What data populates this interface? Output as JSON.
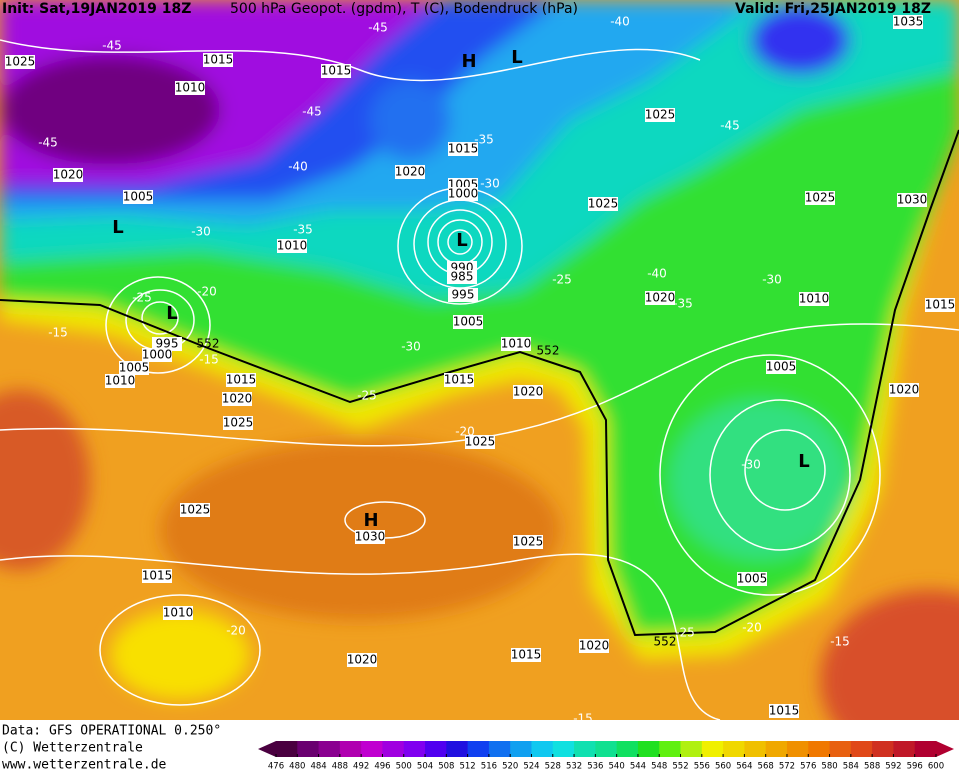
{
  "header": {
    "init": "Init: Sat,19JAN2019 18Z",
    "title": "500 hPa Geopot. (gpdm), T (C), Bodendruck (hPa)",
    "valid": "Valid: Fri,25JAN2019 18Z"
  },
  "footer": {
    "data": "Data: GFS OPERATIONAL 0.250°",
    "copyright": "(C) Wetterzentrale",
    "url": "www.wetterzentrale.de"
  },
  "colorbar": {
    "ticks": [
      476,
      480,
      484,
      488,
      492,
      496,
      500,
      504,
      508,
      512,
      516,
      520,
      524,
      528,
      532,
      536,
      540,
      544,
      548,
      552,
      556,
      560,
      564,
      568,
      572,
      576,
      580,
      584,
      588,
      592,
      596,
      600
    ],
    "colors": [
      "#4a0040",
      "#6a0070",
      "#8a0090",
      "#b000b0",
      "#c000d0",
      "#a000e0",
      "#8000f0",
      "#5000f0",
      "#2010e0",
      "#1040f0",
      "#1070f0",
      "#10a0f0",
      "#10c8f0",
      "#10e0e0",
      "#10e0b0",
      "#10e090",
      "#10e060",
      "#20e020",
      "#60f010",
      "#b0f010",
      "#f0f000",
      "#f0d800",
      "#f0c000",
      "#f0a800",
      "#f09000",
      "#f07800",
      "#e86010",
      "#e04818",
      "#d03020",
      "#c01828",
      "#b00030"
    ]
  },
  "map": {
    "pressure_labels": [
      "1025",
      "1015",
      "1015",
      "1010",
      "1020",
      "1005",
      "1020",
      "1015",
      "1005",
      "1000",
      "1010",
      "990",
      "985",
      "995",
      "1005",
      "1025",
      "1025",
      "1025",
      "1030",
      "1020",
      "1010",
      "1015",
      "1005",
      "1020",
      "995",
      "1000",
      "1005",
      "1010",
      "1015",
      "1020",
      "1025",
      "1010",
      "1015",
      "1020",
      "1025",
      "1025",
      "1030",
      "1025",
      "1015",
      "1010",
      "1005",
      "1020",
      "1020",
      "1015",
      "1015",
      "1035"
    ],
    "temperature_labels": [
      "-45",
      "-45",
      "-45",
      "-45",
      "-40",
      "-35",
      "-35",
      "-30",
      "-30",
      "-25",
      "-20",
      "-15",
      "-15",
      "-30",
      "-25",
      "-25",
      "-20",
      "-40",
      "-35",
      "-30",
      "-45",
      "-40",
      "-30",
      "-20",
      "-25",
      "-20",
      "-15",
      "-15"
    ],
    "contour_labels": [
      "552",
      "552",
      "552"
    ],
    "centers": [
      "H",
      "L",
      "L",
      "L",
      "L",
      "L",
      "H"
    ]
  }
}
